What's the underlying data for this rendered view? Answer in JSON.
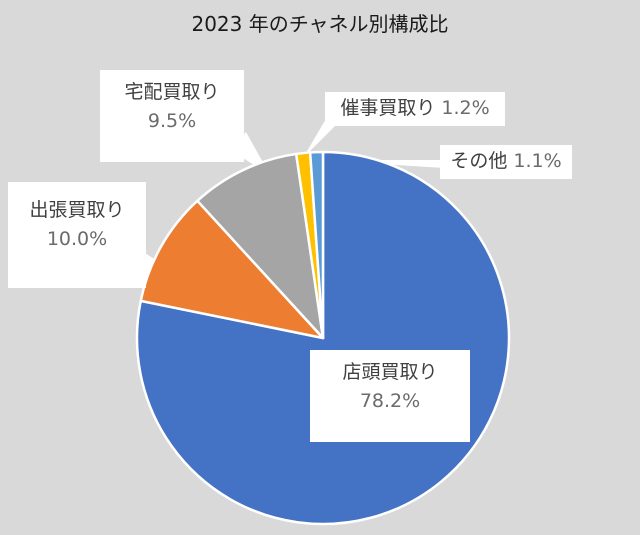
{
  "chart_data": {
    "type": "pie",
    "title": "2023 年のチャネル別構成比",
    "slices": [
      {
        "label": "店頭買取り",
        "value": 78.2,
        "value_label": "78.2%",
        "color": "#4472c4"
      },
      {
        "label": "出張買取り",
        "value": 10.0,
        "value_label": "10.0%",
        "color": "#ed7d31"
      },
      {
        "label": "宅配買取り",
        "value": 9.5,
        "value_label": "9.5%",
        "color": "#a5a5a5"
      },
      {
        "label": "催事買取り",
        "value": 1.2,
        "value_label": "1.2%",
        "color": "#ffc000"
      },
      {
        "label": "その他",
        "value": 1.1,
        "value_label": "1.1%",
        "color": "#5b9bd5"
      }
    ],
    "start_angle_deg": 0,
    "direction": "clockwise",
    "legend": "none"
  }
}
